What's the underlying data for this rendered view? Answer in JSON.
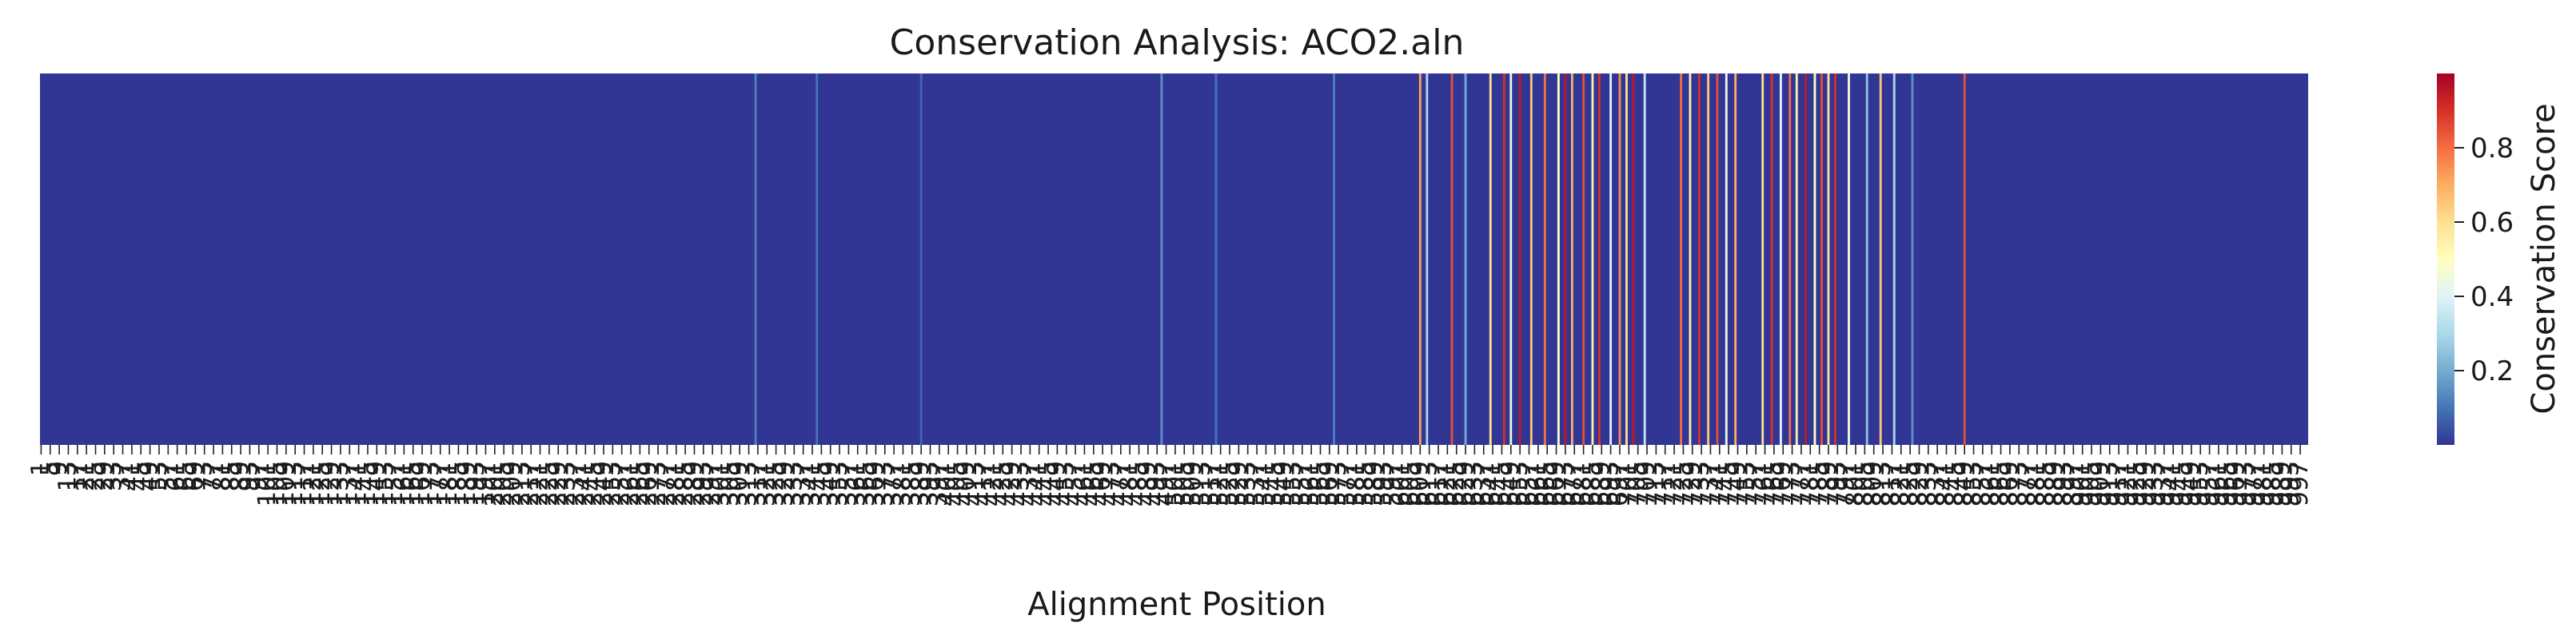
{
  "chart_data": {
    "type": "heatmap",
    "title": "Conservation Analysis: ACO2.aln",
    "xlabel": "Alignment Position",
    "ylabel": "",
    "colorbar": {
      "label": "Conservation Score",
      "colormap": "RdYlBu_r",
      "range": [
        0.0,
        1.0
      ],
      "ticks": [
        "0.2",
        "0.4",
        "0.6",
        "0.8"
      ],
      "tick_values": [
        0.2,
        0.4,
        0.6,
        0.8
      ]
    },
    "n_positions": 1000,
    "baseline_score": 0.005,
    "peaks": [
      {
        "pos": 316,
        "score": 0.12
      },
      {
        "pos": 343,
        "score": 0.1
      },
      {
        "pos": 389,
        "score": 0.08
      },
      {
        "pos": 495,
        "score": 0.15
      },
      {
        "pos": 519,
        "score": 0.1
      },
      {
        "pos": 571,
        "score": 0.12
      },
      {
        "pos": 609,
        "score": 0.72
      },
      {
        "pos": 612,
        "score": 0.3
      },
      {
        "pos": 623,
        "score": 0.85
      },
      {
        "pos": 629,
        "score": 0.2
      },
      {
        "pos": 640,
        "score": 0.6
      },
      {
        "pos": 646,
        "score": 0.9
      },
      {
        "pos": 649,
        "score": 0.45
      },
      {
        "pos": 653,
        "score": 0.95
      },
      {
        "pos": 658,
        "score": 0.65
      },
      {
        "pos": 664,
        "score": 0.8
      },
      {
        "pos": 670,
        "score": 0.5
      },
      {
        "pos": 673,
        "score": 0.95
      },
      {
        "pos": 676,
        "score": 0.7
      },
      {
        "pos": 681,
        "score": 0.85
      },
      {
        "pos": 685,
        "score": 0.55
      },
      {
        "pos": 688,
        "score": 0.9
      },
      {
        "pos": 693,
        "score": 0.4
      },
      {
        "pos": 697,
        "score": 0.75
      },
      {
        "pos": 700,
        "score": 0.6
      },
      {
        "pos": 703,
        "score": 0.95
      },
      {
        "pos": 708,
        "score": 0.35
      },
      {
        "pos": 724,
        "score": 0.8
      },
      {
        "pos": 728,
        "score": 0.55
      },
      {
        "pos": 732,
        "score": 0.9
      },
      {
        "pos": 736,
        "score": 0.65
      },
      {
        "pos": 740,
        "score": 0.85
      },
      {
        "pos": 744,
        "score": 0.45
      },
      {
        "pos": 748,
        "score": 0.7
      },
      {
        "pos": 760,
        "score": 0.6
      },
      {
        "pos": 764,
        "score": 0.9
      },
      {
        "pos": 768,
        "score": 0.4
      },
      {
        "pos": 772,
        "score": 0.8
      },
      {
        "pos": 775,
        "score": 0.55
      },
      {
        "pos": 779,
        "score": 0.95
      },
      {
        "pos": 783,
        "score": 0.5
      },
      {
        "pos": 786,
        "score": 0.85
      },
      {
        "pos": 789,
        "score": 0.6
      },
      {
        "pos": 792,
        "score": 0.9
      },
      {
        "pos": 798,
        "score": 0.45
      },
      {
        "pos": 806,
        "score": 0.25
      },
      {
        "pos": 812,
        "score": 0.65
      },
      {
        "pos": 818,
        "score": 0.3
      },
      {
        "pos": 826,
        "score": 0.15
      },
      {
        "pos": 849,
        "score": 0.85
      }
    ]
  }
}
